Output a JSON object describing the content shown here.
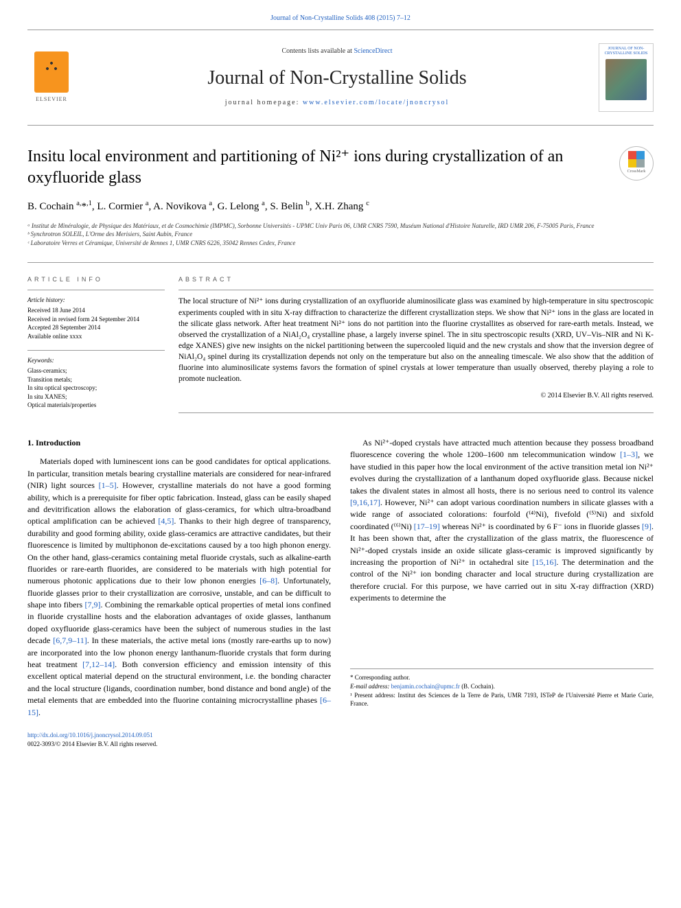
{
  "top_link": {
    "text": "Journal of Non-Crystalline Solids 408 (2015) 7–12"
  },
  "header": {
    "elsevier_label": "ELSEVIER",
    "contents_prefix": "Contents lists available at ",
    "contents_link": "ScienceDirect",
    "journal_name": "Journal of Non-Crystalline Solids",
    "homepage_prefix": "journal homepage: ",
    "homepage_link": "www.elsevier.com/locate/jnoncrysol",
    "cover_text": "JOURNAL OF NON-CRYSTALLINE SOLIDS"
  },
  "crossmark_label": "CrossMark",
  "crossmark_colors": [
    "#e74c3c",
    "#3498db",
    "#f1c40f",
    "#95a5a6"
  ],
  "title": "Insitu local environment and partitioning of Ni²⁺ ions during crystallization of an oxyfluoride glass",
  "authors_html": "B. Cochain <sup>a,</sup>*<sup>,1</sup>, L. Cormier <sup>a</sup>, A. Novikova <sup>a</sup>, G. Lelong <sup>a</sup>, S. Belin <sup>b</sup>, X.H. Zhang <sup>c</sup>",
  "affiliations": [
    "ᵃ Institut de Minéralogie, de Physique des Matériaux, et de Cosmochimie (IMPMC), Sorbonne Universités - UPMC Univ Paris 06, UMR CNRS 7590, Muséum National d'Histoire Naturelle, IRD UMR 206, F-75005 Paris, France",
    "ᵇ Synchrotron SOLEIL, L'Orme des Merisiers, Saint Aubin, France",
    "ᶜ Laboratoire Verres et Céramique, Université de Rennes 1, UMR CNRS 6226, 35042 Rennes Cedex, France"
  ],
  "info": {
    "heading": "article info",
    "history_label": "Article history:",
    "history": [
      "Received 18 June 2014",
      "Received in revised form 24 September 2014",
      "Accepted 28 September 2014",
      "Available online xxxx"
    ],
    "keywords_label": "Keywords:",
    "keywords": [
      "Glass-ceramics;",
      "Transition metals;",
      "In situ optical spectroscopy;",
      "In situ XANES;",
      "Optical materials/properties"
    ]
  },
  "abstract": {
    "heading": "abstract",
    "text": "The local structure of Ni²⁺ ions during crystallization of an oxyfluoride aluminosilicate glass was examined by high-temperature in situ spectroscopic experiments coupled with in situ X-ray diffraction to characterize the different crystallization steps. We show that Ni²⁺ ions in the glass are located in the silicate glass network. After heat treatment Ni²⁺ ions do not partition into the fluorine crystallites as observed for rare-earth metals. Instead, we observed the crystallization of a NiAl₂O₄ crystalline phase, a largely inverse spinel. The in situ spectroscopic results (XRD, UV–Vis–NIR and Ni K-edge XANES) give new insights on the nickel partitioning between the supercooled liquid and the new crystals and show that the inversion degree of NiAl₂O₄ spinel during its crystallization depends not only on the temperature but also on the annealing timescale. We also show that the addition of fluorine into aluminosilicate systems favors the formation of spinel crystals at lower temperature than usually observed, thereby playing a role to promote nucleation.",
    "copyright": "© 2014 Elsevier B.V. All rights reserved."
  },
  "body": {
    "section_heading": "1. Introduction",
    "p1_a": "Materials doped with luminescent ions can be good candidates for optical applications. In particular, transition metals bearing crystalline materials are considered for near-infrared (NIR) light sources ",
    "ref1": "[1–5]",
    "p1_b": ". However, crystalline materials do not have a good forming ability, which is a prerequisite for fiber optic fabrication. Instead, glass can be easily shaped and devitrification allows the elaboration of glass-ceramics, for which ultra-broadband optical amplification can be achieved ",
    "ref2": "[4,5]",
    "p1_c": ". Thanks to their high degree of transparency, durability and good forming ability, oxide glass-ceramics are attractive candidates, but their fluorescence is limited by multiphonon de-excitations caused by a too high phonon energy. On the other hand, glass-ceramics containing metal fluoride crystals, such as alkaline-earth fluorides or rare-earth fluorides, are considered to be materials with high potential for numerous photonic applications due to their low phonon energies ",
    "ref3": "[6–8]",
    "p1_d": ". Unfortunately, fluoride glasses prior to their crystallization are corrosive, unstable, and can be difficult to shape into fibers ",
    "ref4": "[7,9]",
    "p1_e": ". Combining the remarkable optical properties of metal ions confined in fluoride crystalline hosts and the elaboration advantages of oxide glasses, lanthanum doped oxyfluoride glass-ceramics have been the subject of ",
    "p1_f": "numerous studies in the last decade ",
    "ref5": "[6,7,9–11]",
    "p1_g": ". In these materials, the active metal ions (mostly rare-earths up to now) are incorporated into the low phonon energy lanthanum-fluoride crystals that form during heat treatment ",
    "ref6": "[7,12–14]",
    "p1_h": ". Both conversion efficiency and emission intensity of this excellent optical material depend on the structural environment, i.e. the bonding character and the local structure (ligands, coordination number, bond distance and bond angle) of the metal elements that are embedded into the fluorine containing microcrystalline phases ",
    "ref7": "[6–15]",
    "p1_i": ".",
    "p2_a": "As Ni²⁺-doped crystals have attracted much attention because they possess broadband fluorescence covering the whole 1200–1600 nm telecommunication window ",
    "ref8": "[1–3]",
    "p2_b": ", we have studied in this paper how the local environment of the active transition metal ion Ni²⁺ evolves during the crystallization of a lanthanum doped oxyfluoride glass. Because nickel takes the divalent states in almost all hosts, there is no serious need to control its valence ",
    "ref9": "[9,16,17]",
    "p2_c": ". However, Ni²⁺ can adopt various coordination numbers in silicate glasses with a wide range of associated colorations: fourfold (⁽⁴⁾Ni), fivefold (⁽⁵⁾Ni) and sixfold coordinated (⁽⁶⁾Ni) ",
    "ref10": "[17–19]",
    "p2_d": " whereas Ni²⁺ is coordinated by 6 F⁻ ions in fluoride glasses ",
    "ref11": "[9]",
    "p2_e": ". It has been shown that, after the crystallization of the glass matrix, the fluorescence of Ni²⁺-doped crystals inside an oxide silicate glass-ceramic is improved significantly by increasing the proportion of Ni²⁺ in octahedral site ",
    "ref12": "[15,16]",
    "p2_f": ". The determination and the control of the Ni²⁺ ion bonding character and local structure during crystallization are therefore crucial. For this purpose, we have carried out in situ X-ray diffraction (XRD) experiments to determine the"
  },
  "footnotes": {
    "corr": "* Corresponding author.",
    "email_label": "E-mail address: ",
    "email": "benjamin.cochain@upmc.fr",
    "email_who": " (B. Cochain).",
    "present": "¹ Present address: Institut des Sciences de la Terre de Paris, UMR 7193, ISTeP de l'Université Pierre et Marie Curie, France."
  },
  "footer": {
    "doi": "http://dx.doi.org/10.1016/j.jnoncrysol.2014.09.051",
    "issn_line": "0022-3093/© 2014 Elsevier B.V. All rights reserved."
  },
  "colors": {
    "link": "#2060c0",
    "rule": "#999999",
    "elsevier_orange": "#f7941e"
  }
}
